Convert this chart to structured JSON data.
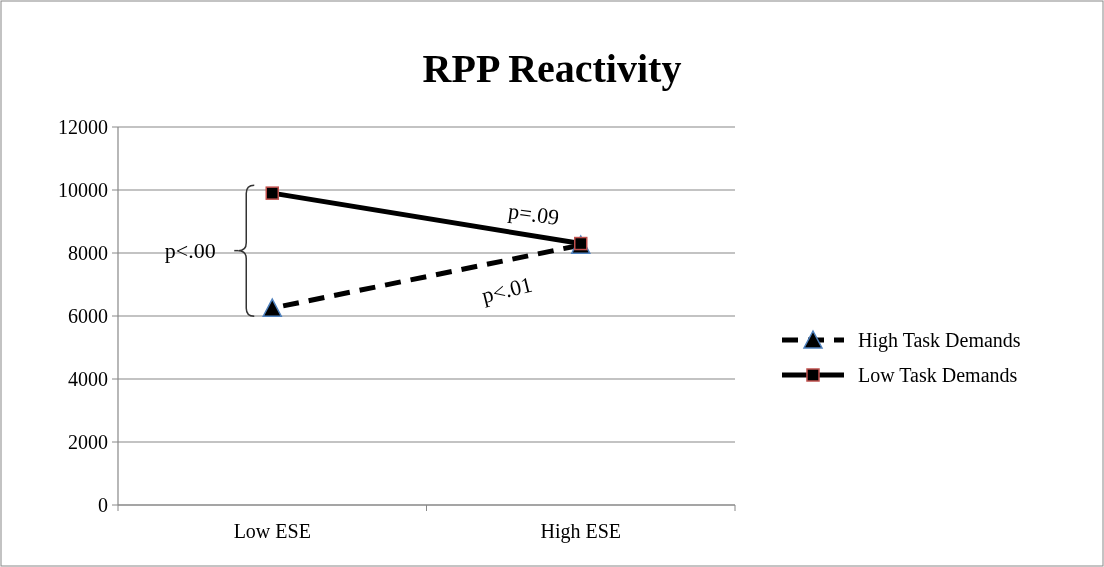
{
  "chart_data": {
    "type": "line",
    "title": "RPP Reactivity",
    "categories": [
      "Low ESE",
      "High ESE"
    ],
    "series": [
      {
        "name": "High Task Demands",
        "color": "#000000",
        "values": [
          6250,
          8250
        ],
        "line_style": "dashed",
        "marker": "triangle"
      },
      {
        "name": "Low Task Demands",
        "color": "#000000",
        "values": [
          9900,
          8300
        ],
        "line_style": "solid",
        "marker": "square"
      }
    ],
    "ylim": [
      0,
      12000
    ],
    "yticks": [
      0,
      2000,
      4000,
      6000,
      8000,
      10000,
      12000
    ],
    "grid": "y",
    "legend": "right",
    "annotations": [
      "p<.00",
      "p=.09",
      "p<.01"
    ]
  }
}
